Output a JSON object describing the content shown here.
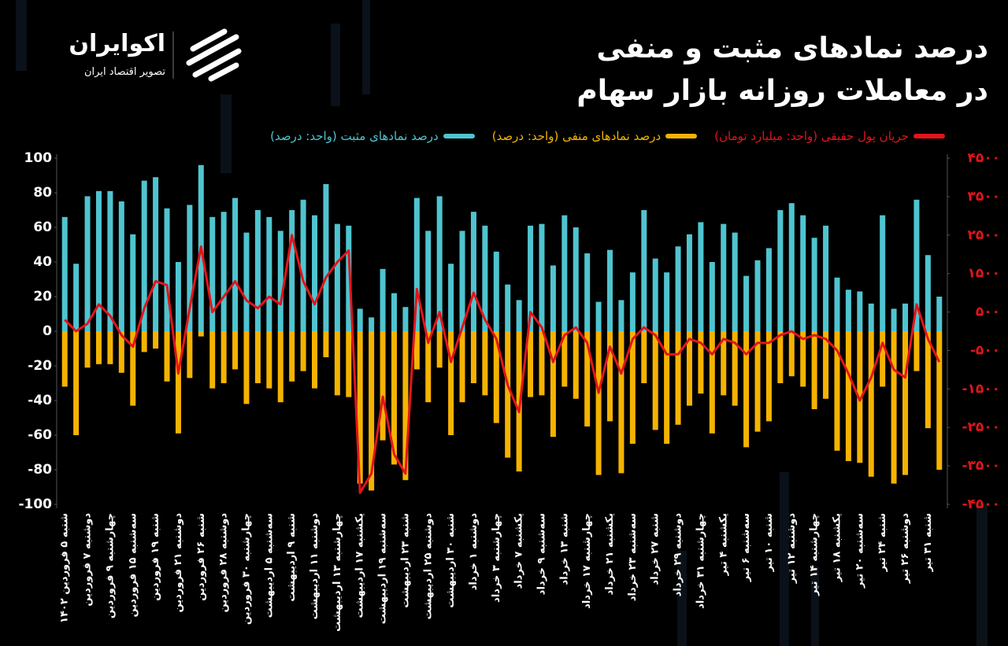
{
  "logo": {
    "name": "اکوایران",
    "tagline": "تصویر اقتصاد ایران"
  },
  "chart_data": {
    "type": "bar",
    "title": "درصد نمادهای مثبت و منفی",
    "subtitle": "در معاملات روزانه بازار سهام",
    "categories": [
      "شنبه ۵ فروردین ۱۴۰۲",
      null,
      "دوشنبه ۷ فروردین",
      null,
      "چهارشنبه ۹ فروردین",
      null,
      "سه‌شنبه ۱۵ فروردین",
      null,
      "شنبه ۱۹ فروردین",
      null,
      "دوشنبه ۲۱ فروردین",
      null,
      "شنبه ۲۶ فروردین",
      null,
      "دوشنبه ۲۸ فروردین",
      null,
      "چهارشنبه ۳۰ فروردین",
      null,
      "سه‌شنبه ۵ اردیبهشت",
      null,
      "شنبه ۹ اردیبهشت",
      null,
      "دوشنبه ۱۱ اردیبهشت",
      null,
      "چهارشنبه ۱۳ اردیبهشت",
      null,
      "یکشنبه ۱۷ اردیبهشت",
      null,
      "سه‌شنبه ۱۹ اردیبهشت",
      null,
      "شنبه ۲۳ اردیبهشت",
      null,
      "دوشنبه ۲۵ اردیبهشت",
      null,
      "شنبه ۳۰ اردیبهشت",
      null,
      "دوشنبه ۱ خرداد",
      null,
      "چهارشنبه ۳ خرداد",
      null,
      "یکشنبه ۷ خرداد",
      null,
      "سه‌شنبه ۹ خرداد",
      null,
      "شنبه ۱۳ خرداد",
      null,
      "چهارشنبه ۱۷ خرداد",
      null,
      "یکشنبه ۲۱ خرداد",
      null,
      "سه‌شنبه ۲۳ خرداد",
      null,
      "شنبه ۲۷ خرداد",
      null,
      "دوشنبه ۲۹ خرداد",
      null,
      "چهارشنبه ۳۱ خرداد",
      null,
      "یکشنبه ۴ تیر",
      null,
      "سه‌شنبه ۶ تیر",
      null,
      "شنبه ۱۰ تیر",
      null,
      "دوشنبه ۱۲ تیر",
      null,
      "چهارشنبه ۱۴ تیر",
      null,
      "یکشنبه ۱۸ تیر",
      null,
      "سه‌شنبه ۲۰ تیر",
      null,
      "شنبه ۲۴ تیر",
      null,
      "دوشنبه ۲۶ تیر",
      null,
      "شنبه ۳۱ تیر",
      null
    ],
    "series": [
      {
        "name": "درصد نمادهای مثبت (واحد: درصد)",
        "color": "#4fc4cf",
        "values": [
          66,
          39,
          78,
          81,
          81,
          75,
          56,
          87,
          89,
          71,
          40,
          73,
          96,
          66,
          69,
          77,
          57,
          70,
          66,
          58,
          70,
          76,
          67,
          85,
          62,
          61,
          13,
          8,
          36,
          22,
          14,
          77,
          58,
          78,
          39,
          58,
          69,
          61,
          46,
          27,
          18,
          61,
          62,
          38,
          67,
          60,
          45,
          17,
          47,
          18,
          34,
          70,
          42,
          34,
          49,
          56,
          63,
          40,
          62,
          57,
          32,
          41,
          48,
          70,
          74,
          67,
          54,
          61,
          31,
          24,
          23,
          16,
          67,
          13,
          16,
          76,
          44,
          20
        ]
      },
      {
        "name": "درصد نمادهای منفی (واحد: درصد)",
        "color": "#f5b300",
        "values": [
          -32,
          -60,
          -21,
          -19,
          -19,
          -24,
          -43,
          -12,
          -10,
          -29,
          -59,
          -27,
          -3,
          -33,
          -30,
          -22,
          -42,
          -30,
          -33,
          -41,
          -29,
          -23,
          -33,
          -15,
          -37,
          -38,
          -88,
          -92,
          -63,
          -77,
          -86,
          -22,
          -41,
          -21,
          -60,
          -41,
          -30,
          -37,
          -53,
          -73,
          -81,
          -38,
          -37,
          -61,
          -32,
          -39,
          -55,
          -83,
          -52,
          -82,
          -65,
          -30,
          -57,
          -65,
          -54,
          -43,
          -36,
          -59,
          -37,
          -43,
          -67,
          -58,
          -52,
          -30,
          -26,
          -32,
          -45,
          -39,
          -69,
          -75,
          -76,
          -84,
          -32,
          -88,
          -83,
          -23,
          -56,
          -80
        ]
      },
      {
        "name": "جریان پول حقیقی (واحد: میلیارد تومان)",
        "color": "#e3141b",
        "type": "line",
        "axis": "y2",
        "values": [
          300,
          0,
          200,
          700,
          400,
          -100,
          -400,
          600,
          1300,
          1200,
          -1100,
          600,
          2200,
          500,
          900,
          1300,
          800,
          600,
          900,
          700,
          2500,
          1300,
          700,
          1400,
          1800,
          2100,
          -4200,
          -3700,
          -1700,
          -3200,
          -3700,
          1100,
          -300,
          500,
          -800,
          100,
          1000,
          300,
          -200,
          -1400,
          -2100,
          500,
          100,
          -800,
          -100,
          100,
          -300,
          -1600,
          -400,
          -1100,
          -200,
          100,
          -100,
          -600,
          -600,
          -200,
          -300,
          -600,
          -200,
          -300,
          -600,
          -300,
          -300,
          -100,
          0,
          -200,
          -100,
          -200,
          -500,
          -1100,
          -1800,
          -1200,
          -300,
          -1000,
          -1200,
          700,
          -200,
          -800
        ]
      }
    ],
    "ylim": [
      -100,
      100
    ],
    "yticks": [
      -100,
      -80,
      -60,
      -40,
      -20,
      0,
      20,
      40,
      60,
      80,
      100
    ],
    "y2lim": [
      -4500,
      4500
    ],
    "y2ticks": [
      {
        "value": -4500,
        "label": "-۴۵۰۰"
      },
      {
        "value": -3500,
        "label": "-۳۵۰۰"
      },
      {
        "value": -2500,
        "label": "-۲۵۰۰"
      },
      {
        "value": -1500,
        "label": "-۱۵۰۰"
      },
      {
        "value": -500,
        "label": "-۵۰۰"
      },
      {
        "value": 500,
        "label": "۵۰۰"
      },
      {
        "value": 1500,
        "label": "۱۵۰۰"
      },
      {
        "value": 2500,
        "label": "۲۵۰۰"
      },
      {
        "value": 3500,
        "label": "۳۵۰۰"
      },
      {
        "value": 4500,
        "label": "۴۵۰۰"
      }
    ],
    "grid": false
  }
}
